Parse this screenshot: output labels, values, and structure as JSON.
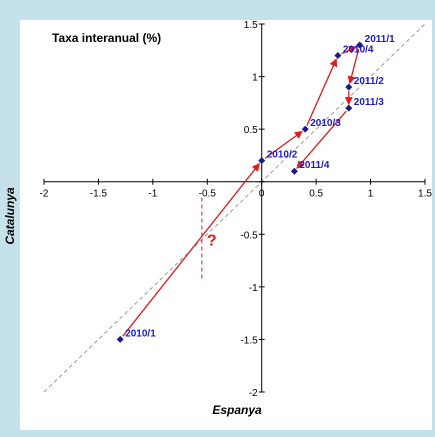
{
  "chart_data": {
    "type": "scatter",
    "title": "Taxa interanual (%)",
    "xlabel": "Espanya",
    "ylabel": "Catalunya",
    "xlim": [
      -2,
      1.5
    ],
    "ylim": [
      -2,
      1.5
    ],
    "x_ticks": [
      "-2",
      "-1.5",
      "-1",
      "-0.5",
      "0",
      "0.5",
      "1",
      "1.5"
    ],
    "y_ticks": [
      "-2",
      "-1.5",
      "-1",
      "-0.5",
      "0",
      "0.5",
      "1",
      "1.5"
    ],
    "grid": false,
    "legend": "none",
    "series": [
      {
        "points": [
          {
            "label": "2010/1",
            "x": -1.3,
            "y": -1.5
          },
          {
            "label": "2010/2",
            "x": 0.0,
            "y": 0.2
          },
          {
            "label": "2010/3",
            "x": 0.4,
            "y": 0.5
          },
          {
            "label": "2010/4",
            "x": 0.7,
            "y": 1.2
          },
          {
            "label": "2011/1",
            "x": 0.9,
            "y": 1.3
          },
          {
            "label": "2011/2",
            "x": 0.8,
            "y": 0.9
          },
          {
            "label": "2011/3",
            "x": 0.8,
            "y": 0.7
          },
          {
            "label": "2011/4",
            "x": 0.3,
            "y": 0.1
          }
        ]
      }
    ],
    "reference_line": {
      "style": "dashed",
      "from": [
        -2,
        -2
      ],
      "to": [
        1.5,
        1.5
      ]
    },
    "annotation": {
      "text": "?",
      "x": -0.55,
      "y_from": -0.15,
      "y_to": -0.95
    },
    "colors": {
      "points": "#1a1a80",
      "labels": "#1a1acc",
      "arrows": "#e21a1a",
      "reference": "#999999",
      "annotation": "#e21a1a",
      "background": "#c5e2ec",
      "plot": "#ffffff"
    }
  }
}
